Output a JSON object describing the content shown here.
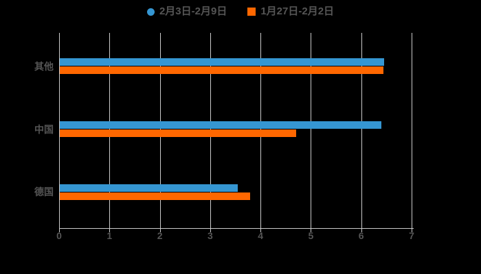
{
  "colors": {
    "background": "#000000",
    "gridline": "#cccccc",
    "axis": "#cccccc",
    "text": "#555555",
    "series_blue": "#3596d2",
    "series_orange": "#ff6700"
  },
  "legend": {
    "items": [
      {
        "label": "2月3日-2月9日",
        "marker": "circle",
        "color": "#3596d2"
      },
      {
        "label": "1月27日-2月2日",
        "marker": "square",
        "color": "#ff6700"
      }
    ]
  },
  "chart_data": {
    "type": "bar",
    "orientation": "horizontal",
    "title": "",
    "categories": [
      "其他",
      "中国",
      "德国"
    ],
    "series": [
      {
        "name": "2月3日-2月9日",
        "color": "#3596d2",
        "marker": "circle",
        "values": [
          6.44,
          6.38,
          3.54
        ]
      },
      {
        "name": "1月27日-2月2日",
        "color": "#ff6700",
        "marker": "square",
        "values": [
          6.43,
          4.7,
          3.78
        ]
      }
    ],
    "xlabel": "",
    "ylabel": "",
    "xlim": [
      0,
      7
    ],
    "x_ticks": [
      "0",
      "1",
      "2",
      "3",
      "4",
      "5",
      "6",
      "7"
    ],
    "grid": true,
    "legend_position": "top"
  }
}
